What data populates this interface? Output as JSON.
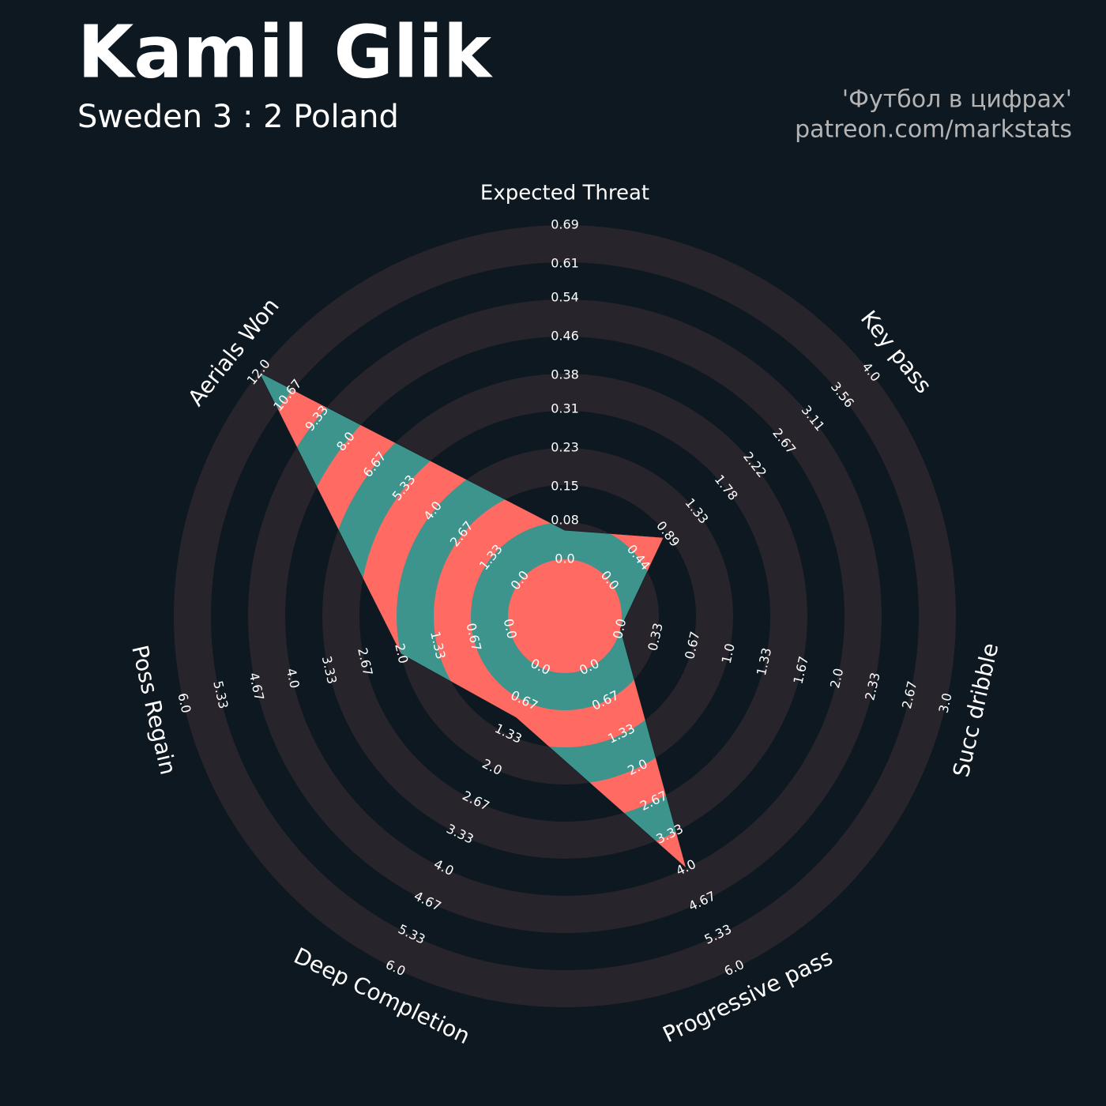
{
  "chart_data": {
    "type": "radar",
    "title": "Kamil Glik",
    "subtitle": "Sweden 3 : 2 Poland",
    "credits": [
      "'Футбол в цифрах'",
      "patreon.com/markstats"
    ],
    "categories": [
      "Expected Threat",
      "Key pass",
      "Succ dribble",
      "Progressive pass",
      "Deep Completion",
      "Poss Regain",
      "Aerials Won"
    ],
    "values": [
      0.06,
      0.83,
      0,
      4,
      1,
      2,
      12
    ],
    "colors": [
      "#3d948c",
      "#ff6a63"
    ],
    "ring_color": "#28242b",
    "axes": [
      {
        "lim": [
          0,
          0.69
        ],
        "ticks": [
          {
            "value": 0,
            "label": "0.0"
          },
          0.08,
          0.15,
          0.23,
          0.31,
          0.38,
          0.46,
          0.54,
          0.61,
          0.69
        ]
      },
      {
        "lim": [
          0,
          4
        ],
        "ticks": [
          {
            "value": 0,
            "label": "0.0"
          },
          0.44,
          0.89,
          1.33,
          1.78,
          2.22,
          2.67,
          3.11,
          3.56,
          {
            "value": 4,
            "label": "4.0"
          }
        ]
      },
      {
        "lim": [
          0,
          3
        ],
        "ticks": [
          {
            "value": 0,
            "label": "0.0"
          },
          0.33,
          0.67,
          {
            "value": 1,
            "label": "1.0"
          },
          1.33,
          1.67,
          {
            "value": 2,
            "label": "2.0"
          },
          2.33,
          2.67,
          {
            "value": 3,
            "label": "3.0"
          }
        ]
      },
      {
        "lim": [
          0,
          6
        ],
        "ticks": [
          {
            "value": 0,
            "label": "0.0"
          },
          0.67,
          1.33,
          {
            "value": 2,
            "label": "2.0"
          },
          2.67,
          3.33,
          {
            "value": 4,
            "label": "4.0"
          },
          4.67,
          5.33,
          {
            "value": 6,
            "label": "6.0"
          }
        ]
      },
      {
        "lim": [
          0,
          6
        ],
        "ticks": [
          {
            "value": 0,
            "label": "0.0"
          },
          0.67,
          1.33,
          {
            "value": 2,
            "label": "2.0"
          },
          2.67,
          3.33,
          {
            "value": 4,
            "label": "4.0"
          },
          4.67,
          5.33,
          {
            "value": 6,
            "label": "6.0"
          }
        ]
      },
      {
        "lim": [
          0,
          6
        ],
        "ticks": [
          {
            "value": 0,
            "label": "0.0"
          },
          0.67,
          1.33,
          {
            "value": 2,
            "label": "2.0"
          },
          2.67,
          3.33,
          {
            "value": 4,
            "label": "4.0"
          },
          4.67,
          5.33,
          {
            "value": 6,
            "label": "6.0"
          }
        ]
      },
      {
        "lim": [
          0,
          12
        ],
        "ticks": [
          {
            "value": 0,
            "label": "0.0"
          },
          1.33,
          2.67,
          {
            "value": 4,
            "label": "4.0"
          },
          5.33,
          6.67,
          {
            "value": 8,
            "label": "8.0"
          },
          9.33,
          10.67,
          {
            "value": 12,
            "label": "12.0"
          }
        ]
      }
    ]
  }
}
